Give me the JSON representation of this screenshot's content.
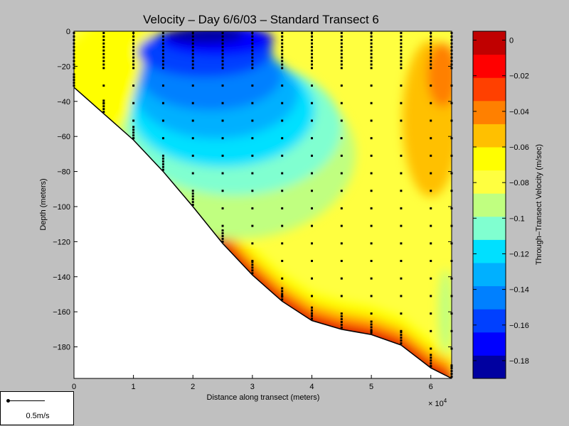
{
  "chart_data": {
    "type": "heatmap",
    "title": "Velocity – Day 6/6/03 – Standard Transect 6",
    "xlabel": "Distance along transect (meters)",
    "ylabel": "Depth (meters)",
    "x_multiplier": "× 10",
    "x_multiplier_exp": "4",
    "xlim": [
      0,
      63500
    ],
    "ylim": [
      -198,
      0
    ],
    "x_ticks": [
      0,
      1,
      2,
      3,
      4,
      5,
      6
    ],
    "y_ticks": [
      0,
      -20,
      -40,
      -60,
      -80,
      -100,
      -120,
      -140,
      -160,
      -180
    ],
    "colorbar": {
      "label": "Through–Transect Velocity (m/sec)",
      "range": [
        -0.19,
        0.005
      ],
      "ticks": [
        "0",
        "−0.02",
        "−0.04",
        "−0.06",
        "−0.08",
        "−0.1",
        "−0.12",
        "−0.14",
        "−0.16",
        "−0.18"
      ],
      "tick_values": [
        0,
        -0.02,
        -0.04,
        -0.06,
        -0.08,
        -0.1,
        -0.12,
        -0.14,
        -0.16,
        -0.18
      ],
      "colors": [
        "#0000a0",
        "#0000ff",
        "#0040ff",
        "#0080ff",
        "#00b0ff",
        "#00e0ff",
        "#80ffd0",
        "#c0ff80",
        "#ffff40",
        "#ffff00",
        "#ffc000",
        "#ff8000",
        "#ff4000",
        "#ff0000",
        "#c00000"
      ]
    },
    "bottom_profile": [
      {
        "x": 0,
        "depth": -32
      },
      {
        "x": 5000,
        "depth": -47
      },
      {
        "x": 10000,
        "depth": -62
      },
      {
        "x": 15000,
        "depth": -80
      },
      {
        "x": 20000,
        "depth": -100
      },
      {
        "x": 25000,
        "depth": -121
      },
      {
        "x": 30000,
        "depth": -139
      },
      {
        "x": 35000,
        "depth": -154
      },
      {
        "x": 40000,
        "depth": -165
      },
      {
        "x": 45000,
        "depth": -170
      },
      {
        "x": 50000,
        "depth": -173
      },
      {
        "x": 55000,
        "depth": -179
      },
      {
        "x": 60000,
        "depth": -192
      },
      {
        "x": 63500,
        "depth": -198
      }
    ],
    "station_x": [
      0,
      5000,
      10000,
      15000,
      20000,
      25000,
      30000,
      35000,
      40000,
      45000,
      50000,
      55000,
      60000,
      63500
    ],
    "legend_scale": "0.5m/s"
  }
}
